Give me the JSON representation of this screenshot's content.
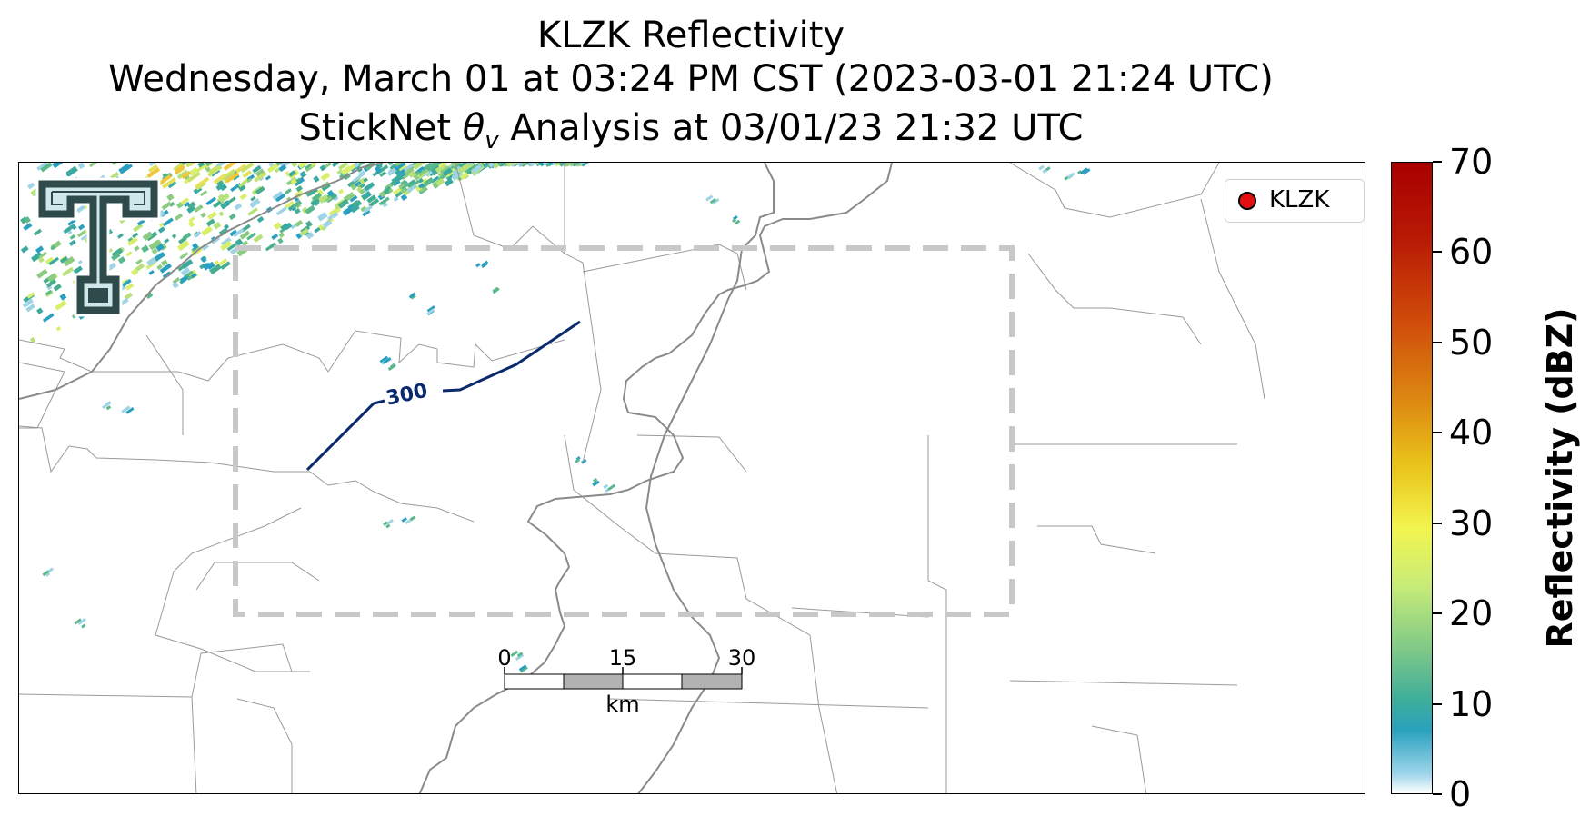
{
  "title": {
    "line1": "KLZK Reflectivity",
    "line2": "Wednesday, March 01 at 03:24 PM CST (2023-03-01 21:24 UTC)",
    "line3_prefix": "StickNet ",
    "line3_symbol": "θ",
    "line3_subscript": "v",
    "line3_suffix": " Analysis at 03/01/23 21:32 UTC"
  },
  "legend": {
    "label": "KLZK",
    "marker_color": "#e41010"
  },
  "contour": {
    "label": "300",
    "color": "#0b2a6e"
  },
  "scalebar": {
    "ticks": [
      "0",
      "15",
      "30"
    ],
    "unit": "km"
  },
  "colorbar": {
    "label": "Reflectivity (dBZ)",
    "ticks": [
      "0",
      "10",
      "20",
      "30",
      "40",
      "50",
      "60",
      "70"
    ],
    "min": 0,
    "max": 70
  },
  "colors": {
    "analysis_box": "#c8c8c8",
    "river": "#8a8a8a",
    "county_lines": "#9a9a9a",
    "logo": "#2f4a4a"
  },
  "icons": {
    "logo": "texas-tech-double-t-logo",
    "radar_site": "red-circle-marker"
  }
}
